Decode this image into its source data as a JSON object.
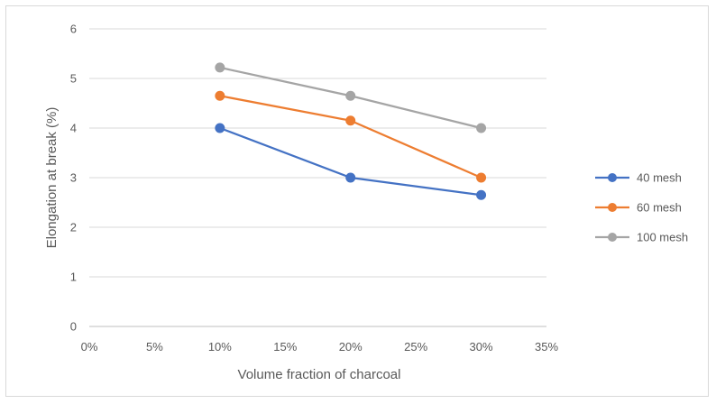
{
  "chart_data": {
    "type": "line",
    "title": "",
    "xlabel": "Volume fraction of charcoal",
    "ylabel": "Elongation at break (%)",
    "x_ticks": [
      "0%",
      "5%",
      "10%",
      "15%",
      "20%",
      "25%",
      "30%",
      "35%"
    ],
    "y_ticks": [
      "0",
      "1",
      "2",
      "3",
      "4",
      "5",
      "6"
    ],
    "xlim": [
      0,
      0.35
    ],
    "ylim": [
      0,
      6
    ],
    "x": [
      0.1,
      0.2,
      0.3
    ],
    "grid": "horizontal",
    "legend_position": "right",
    "series": [
      {
        "name": "40 mesh",
        "color": "#4472C4",
        "values": [
          4.0,
          3.0,
          2.65
        ]
      },
      {
        "name": "60 mesh",
        "color": "#ED7D31",
        "values": [
          4.65,
          4.15,
          3.0
        ]
      },
      {
        "name": "100 mesh",
        "color": "#A5A5A5",
        "values": [
          5.22,
          4.65,
          4.0
        ]
      }
    ]
  }
}
